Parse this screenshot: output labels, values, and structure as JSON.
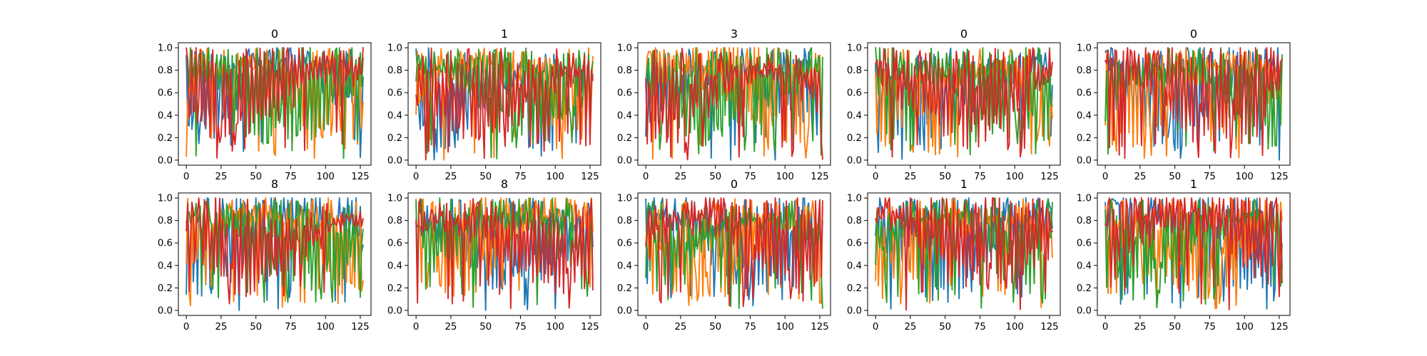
{
  "figure": {
    "colors": [
      "#1f77b4",
      "#ff7f0e",
      "#2ca02c",
      "#d62728"
    ]
  },
  "chart_data": [
    {
      "type": "line",
      "title": "0",
      "row": 0,
      "col": 0,
      "xlim": [
        0,
        127
      ],
      "ylim": [
        0.0,
        1.0
      ],
      "xticks": [
        0,
        25,
        50,
        75,
        100,
        125
      ],
      "yticks": [
        0.0,
        0.2,
        0.4,
        0.6,
        0.8,
        1.0
      ],
      "seed": 11,
      "points": 128,
      "series_count": 4
    },
    {
      "type": "line",
      "title": "1",
      "row": 0,
      "col": 1,
      "xlim": [
        0,
        127
      ],
      "ylim": [
        0.0,
        1.0
      ],
      "xticks": [
        0,
        25,
        50,
        75,
        100,
        125
      ],
      "yticks": [
        0.0,
        0.2,
        0.4,
        0.6,
        0.8,
        1.0
      ],
      "seed": 23,
      "points": 128,
      "series_count": 4
    },
    {
      "type": "line",
      "title": "3",
      "row": 0,
      "col": 2,
      "xlim": [
        0,
        127
      ],
      "ylim": [
        0.0,
        1.0
      ],
      "xticks": [
        0,
        25,
        50,
        75,
        100,
        125
      ],
      "yticks": [
        0.0,
        0.2,
        0.4,
        0.6,
        0.8,
        1.0
      ],
      "seed": 37,
      "points": 128,
      "series_count": 4
    },
    {
      "type": "line",
      "title": "0",
      "row": 0,
      "col": 3,
      "xlim": [
        0,
        127
      ],
      "ylim": [
        0.0,
        1.0
      ],
      "xticks": [
        0,
        25,
        50,
        75,
        100,
        125
      ],
      "yticks": [
        0.0,
        0.2,
        0.4,
        0.6,
        0.8,
        1.0
      ],
      "seed": 41,
      "points": 128,
      "series_count": 4
    },
    {
      "type": "line",
      "title": "0",
      "row": 0,
      "col": 4,
      "xlim": [
        0,
        127
      ],
      "ylim": [
        0.0,
        1.0
      ],
      "xticks": [
        0,
        25,
        50,
        75,
        100,
        125
      ],
      "yticks": [
        0.0,
        0.2,
        0.4,
        0.6,
        0.8,
        1.0
      ],
      "seed": 53,
      "points": 128,
      "series_count": 4
    },
    {
      "type": "line",
      "title": "8",
      "row": 1,
      "col": 0,
      "xlim": [
        0,
        127
      ],
      "ylim": [
        0.0,
        1.0
      ],
      "xticks": [
        0,
        25,
        50,
        75,
        100,
        125
      ],
      "yticks": [
        0.0,
        0.2,
        0.4,
        0.6,
        0.8,
        1.0
      ],
      "seed": 67,
      "points": 128,
      "series_count": 4
    },
    {
      "type": "line",
      "title": "8",
      "row": 1,
      "col": 1,
      "xlim": [
        0,
        127
      ],
      "ylim": [
        0.0,
        1.0
      ],
      "xticks": [
        0,
        25,
        50,
        75,
        100,
        125
      ],
      "yticks": [
        0.0,
        0.2,
        0.4,
        0.6,
        0.8,
        1.0
      ],
      "seed": 71,
      "points": 128,
      "series_count": 4
    },
    {
      "type": "line",
      "title": "0",
      "row": 1,
      "col": 2,
      "xlim": [
        0,
        127
      ],
      "ylim": [
        0.0,
        1.0
      ],
      "xticks": [
        0,
        25,
        50,
        75,
        100,
        125
      ],
      "yticks": [
        0.0,
        0.2,
        0.4,
        0.6,
        0.8,
        1.0
      ],
      "seed": 83,
      "points": 128,
      "series_count": 4
    },
    {
      "type": "line",
      "title": "1",
      "row": 1,
      "col": 3,
      "xlim": [
        0,
        127
      ],
      "ylim": [
        0.0,
        1.0
      ],
      "xticks": [
        0,
        25,
        50,
        75,
        100,
        125
      ],
      "yticks": [
        0.0,
        0.2,
        0.4,
        0.6,
        0.8,
        1.0
      ],
      "seed": 97,
      "points": 128,
      "series_count": 4
    },
    {
      "type": "line",
      "title": "1",
      "row": 1,
      "col": 4,
      "xlim": [
        0,
        127
      ],
      "ylim": [
        0.0,
        1.0
      ],
      "xticks": [
        0,
        25,
        50,
        75,
        100,
        125
      ],
      "yticks": [
        0.0,
        0.2,
        0.4,
        0.6,
        0.8,
        1.0
      ],
      "seed": 101,
      "points": 128,
      "series_count": 4
    }
  ]
}
